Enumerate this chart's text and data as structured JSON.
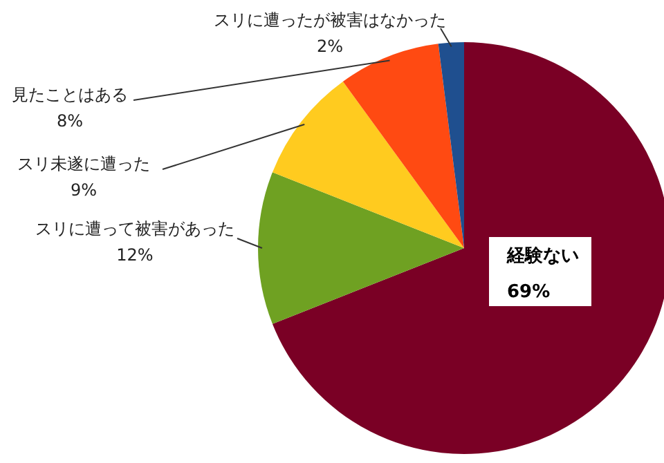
{
  "chart_data": {
    "type": "pie",
    "categories": [
      "経験ない",
      "スリに遭って被害があった",
      "スリ未遂に遭った",
      "見たことはある",
      "スリに遭ったが被害はなかった"
    ],
    "values": [
      69,
      12,
      9,
      8,
      2
    ],
    "value_labels": [
      "69%",
      "12%",
      "9%",
      "8%",
      "2%"
    ],
    "colors": [
      "#7a0025",
      "#6fa122",
      "#ffcb1f",
      "#ff4a12",
      "#1f4f8f"
    ]
  }
}
